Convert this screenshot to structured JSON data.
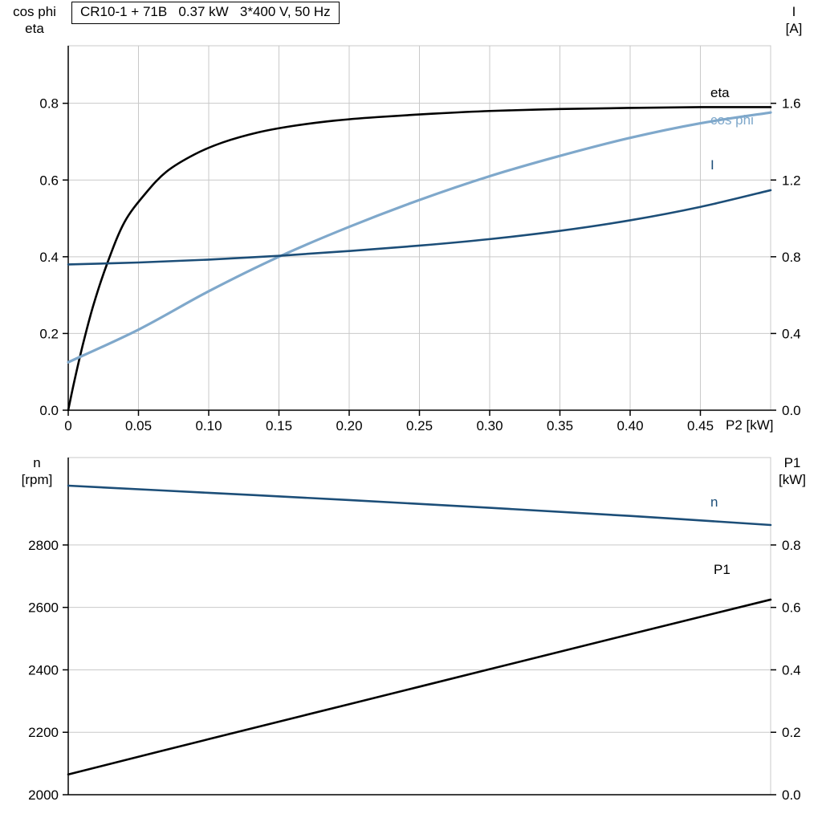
{
  "title_box": "CR10-1 + 71B   0.37 kW   3*400 V, 50 Hz",
  "x_axis_label": "P2 [kW]",
  "colors": {
    "black": "#000000",
    "dark_blue": "#1c4e78",
    "light_blue": "#7fa8cb",
    "grid": "#c9c9c9",
    "axis": "#000000",
    "background": "#ffffff"
  },
  "axes_corner_labels": {
    "top_left_line1": "cos phi",
    "top_left_line2": "eta",
    "top_right_line1": "I",
    "top_right_line2": "[A]",
    "bottom_left_line1": "n",
    "bottom_left_line2": "[rpm]",
    "bottom_right_line1": "P1",
    "bottom_right_line2": "[kW]"
  },
  "curve_labels": {
    "eta": "eta",
    "cos_phi": "cos phi",
    "current": "I",
    "speed": "n",
    "input_power": "P1"
  },
  "chart_data": [
    {
      "type": "line",
      "title": "CR10-1 + 71B   0.37 kW   3*400 V, 50 Hz",
      "xlabel": "P2 [kW]",
      "ylabel_left": "cos phi, eta",
      "ylabel_right": "I [A]",
      "xlim": [
        0,
        0.5
      ],
      "ylim_left": [
        0,
        0.95
      ],
      "ylim_right": [
        0,
        1.9
      ],
      "grid": {
        "vertical": true,
        "horizontal": true
      },
      "x_ticks": {
        "values": [
          0,
          0.05,
          0.1,
          0.15,
          0.2,
          0.25,
          0.3,
          0.35,
          0.4,
          0.45
        ],
        "labels": [
          "0",
          "0.05",
          "0.10",
          "0.15",
          "0.20",
          "0.25",
          "0.30",
          "0.35",
          "0.40",
          "0.45"
        ]
      },
      "y_ticks_left": {
        "values": [
          0,
          0.2,
          0.4,
          0.6,
          0.8
        ],
        "labels": [
          "0.0",
          "0.2",
          "0.4",
          "0.6",
          "0.8"
        ]
      },
      "y_ticks_right": {
        "values": [
          0,
          0.4,
          0.8,
          1.2,
          1.6
        ],
        "labels": [
          "0.0",
          "0.4",
          "0.8",
          "1.2",
          "1.6"
        ]
      },
      "series": [
        {
          "name": "eta",
          "axis": "left",
          "color": "#000000",
          "width": 2.6,
          "x": [
            0,
            0.004,
            0.01,
            0.018,
            0.028,
            0.04,
            0.055,
            0.07,
            0.09,
            0.11,
            0.135,
            0.16,
            0.19,
            0.22,
            0.26,
            0.3,
            0.35,
            0.4,
            0.45,
            0.5
          ],
          "y": [
            0,
            0.07,
            0.165,
            0.275,
            0.385,
            0.49,
            0.565,
            0.622,
            0.667,
            0.698,
            0.724,
            0.741,
            0.755,
            0.764,
            0.773,
            0.78,
            0.785,
            0.788,
            0.79,
            0.79
          ]
        },
        {
          "name": "cos phi",
          "axis": "left",
          "color": "#7fa8cb",
          "width": 3.2,
          "x": [
            0,
            0.05,
            0.1,
            0.15,
            0.2,
            0.25,
            0.3,
            0.35,
            0.4,
            0.45,
            0.5
          ],
          "y": [
            0.125,
            0.21,
            0.31,
            0.4,
            0.478,
            0.548,
            0.61,
            0.663,
            0.71,
            0.748,
            0.776
          ]
        },
        {
          "name": "I",
          "axis": "right",
          "color": "#1c4e78",
          "width": 2.6,
          "x": [
            0,
            0.05,
            0.1,
            0.15,
            0.2,
            0.25,
            0.3,
            0.35,
            0.4,
            0.45,
            0.5
          ],
          "y": [
            0.76,
            0.77,
            0.785,
            0.805,
            0.83,
            0.858,
            0.892,
            0.935,
            0.99,
            1.06,
            1.147
          ]
        }
      ]
    },
    {
      "type": "line",
      "title": "",
      "xlabel": "",
      "ylabel_left": "n [rpm]",
      "ylabel_right": "P1 [kW]",
      "xlim": [
        0,
        0.5
      ],
      "ylim_left": [
        2000,
        3080
      ],
      "ylim_right": [
        0,
        1.08
      ],
      "grid": {
        "vertical": false,
        "horizontal": true
      },
      "x_ticks": {
        "values": [],
        "labels": []
      },
      "y_ticks_left": {
        "values": [
          2000,
          2200,
          2400,
          2600,
          2800
        ],
        "labels": [
          "2000",
          "2200",
          "2400",
          "2600",
          "2800"
        ]
      },
      "y_ticks_right": {
        "values": [
          0,
          0.2,
          0.4,
          0.6,
          0.8
        ],
        "labels": [
          "0.0",
          "0.2",
          "0.4",
          "0.6",
          "0.8"
        ]
      },
      "series": [
        {
          "name": "n",
          "axis": "left",
          "color": "#1c4e78",
          "width": 2.6,
          "x": [
            0,
            0.1,
            0.2,
            0.3,
            0.4,
            0.5
          ],
          "y": [
            2990,
            2967,
            2944,
            2919,
            2893,
            2864
          ]
        },
        {
          "name": "P1",
          "axis": "right",
          "color": "#000000",
          "width": 2.6,
          "x": [
            0,
            0.1,
            0.2,
            0.3,
            0.4,
            0.5
          ],
          "y": [
            0.065,
            0.178,
            0.29,
            0.402,
            0.514,
            0.625
          ]
        }
      ]
    }
  ]
}
